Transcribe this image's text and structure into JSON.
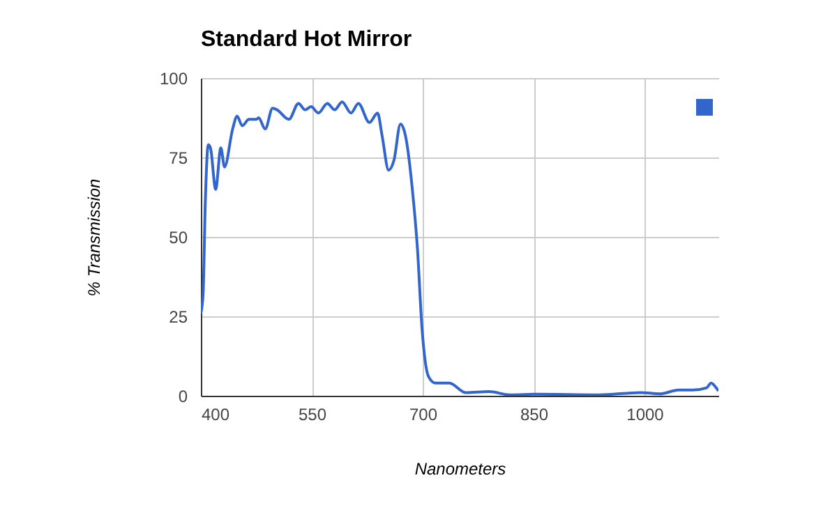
{
  "chart_data": {
    "type": "line",
    "title": "Standard Hot Mirror",
    "xlabel": "Nanometers",
    "ylabel": "% Transmission",
    "xlim": [
      400,
      1100
    ],
    "xticks": [
      400,
      550,
      700,
      850,
      1000
    ],
    "ylim": [
      0,
      100
    ],
    "yticks": [
      0,
      25,
      50,
      75,
      100
    ],
    "grid": true,
    "series": [
      {
        "color": "#3366cc",
        "x": [
          400,
          403,
          406,
          410,
          413,
          420,
          427,
          432,
          443,
          449,
          456,
          465,
          475,
          478,
          487,
          497,
          503,
          519,
          532,
          541,
          549,
          559,
          571,
          581,
          591,
          603,
          613,
          628,
          639,
          645,
          654,
          661,
          670,
          677,
          686,
          693,
          699,
          708,
          717,
          736,
          758,
          790,
          818,
          856,
          938,
          995,
          1021,
          1046,
          1065,
          1084,
          1090,
          1097,
          1100
        ],
        "values": [
          26,
          32,
          61,
          79,
          78,
          65,
          78,
          72,
          84,
          88,
          85,
          87,
          87,
          87.5,
          84,
          90.5,
          90,
          87,
          92,
          90,
          91,
          89,
          92,
          90,
          92.5,
          89,
          92,
          86,
          89,
          82,
          71,
          74,
          85.5,
          81.5,
          65,
          46,
          21.5,
          6,
          4,
          4,
          1,
          1.3,
          0.3,
          0.5,
          0.3,
          1,
          0.6,
          1.8,
          1.8,
          2.5,
          4,
          2.5,
          1.5
        ]
      }
    ]
  }
}
